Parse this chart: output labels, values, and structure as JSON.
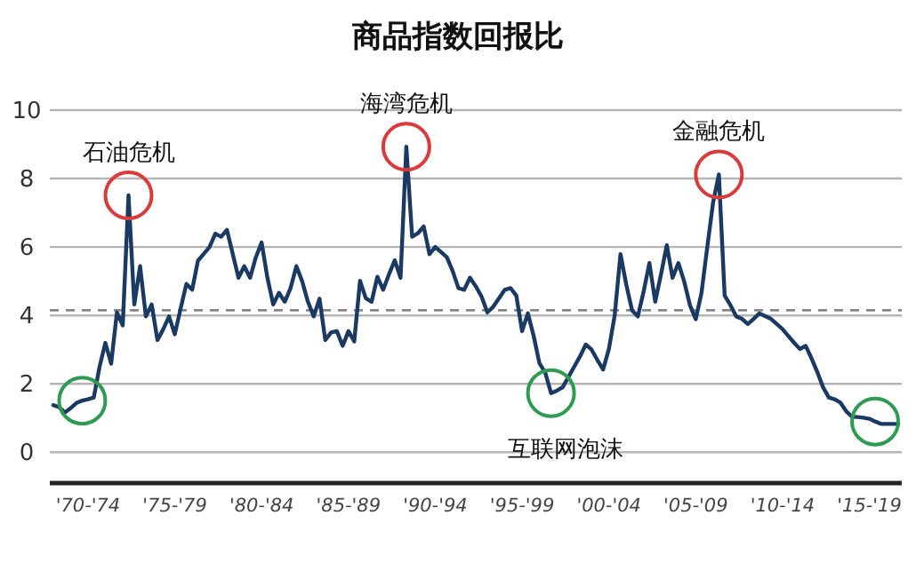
{
  "chart_data": {
    "type": "line",
    "title": "商品指数回报比",
    "categories": [
      null,
      null,
      null,
      null,
      null,
      null,
      "'70-'74",
      null,
      null,
      null,
      null,
      null,
      null,
      null,
      null,
      null,
      null,
      null,
      null,
      null,
      null,
      "'75-'79",
      null,
      null,
      null,
      null,
      null,
      null,
      null,
      null,
      null,
      null,
      null,
      null,
      null,
      null,
      "'80-'84",
      null,
      null,
      null,
      null,
      null,
      null,
      null,
      null,
      null,
      null,
      null,
      null,
      null,
      null,
      "'85-'89",
      null,
      null,
      null,
      null,
      null,
      null,
      null,
      null,
      null,
      null,
      null,
      null,
      null,
      null,
      "'90-'94",
      null,
      null,
      null,
      null,
      null,
      null,
      null,
      null,
      null,
      null,
      null,
      null,
      null,
      null,
      "'95-'99",
      null,
      null,
      null,
      null,
      null,
      null,
      null,
      null,
      null,
      null,
      null,
      null,
      null,
      null,
      "'00-'04",
      null,
      null,
      null,
      null,
      null,
      null,
      null,
      null,
      null,
      null,
      null,
      null,
      null,
      null,
      "'05-'09",
      null,
      null,
      null,
      null,
      null,
      null,
      null,
      null,
      null,
      null,
      null,
      null,
      null,
      null,
      "'10-'14",
      null,
      null,
      null,
      null,
      null,
      null,
      null,
      null,
      null,
      null,
      null,
      null,
      null,
      null,
      "'15-'19",
      null,
      null,
      null,
      null,
      null
    ],
    "series": [
      {
        "color": "#1b3a63",
        "values": [
          1.38,
          1.32,
          1.16,
          1.29,
          1.44,
          1.51,
          1.55,
          1.6,
          2.5,
          3.2,
          2.59,
          4.09,
          3.71,
          7.51,
          4.32,
          5.44,
          3.97,
          4.32,
          3.28,
          3.6,
          3.97,
          3.45,
          4.2,
          4.92,
          4.75,
          5.6,
          5.8,
          6.0,
          6.39,
          6.3,
          6.5,
          5.8,
          5.1,
          5.44,
          5.1,
          5.7,
          6.13,
          5.1,
          4.32,
          4.66,
          4.4,
          4.8,
          5.44,
          5.0,
          4.4,
          3.97,
          4.49,
          3.28,
          3.5,
          3.54,
          3.11,
          3.54,
          3.24,
          5.01,
          4.5,
          4.4,
          5.13,
          4.75,
          5.2,
          5.61,
          5.1,
          8.93,
          6.3,
          6.4,
          6.6,
          5.79,
          6.0,
          5.85,
          5.7,
          5.3,
          4.8,
          4.75,
          5.1,
          4.85,
          4.55,
          4.09,
          4.25,
          4.5,
          4.75,
          4.8,
          4.58,
          3.54,
          4.06,
          3.4,
          2.6,
          2.33,
          1.73,
          1.8,
          1.9,
          2.2,
          2.5,
          2.8,
          3.15,
          3.0,
          2.7,
          2.42,
          3.02,
          4.0,
          5.79,
          4.9,
          4.15,
          3.97,
          4.7,
          5.53,
          4.4,
          5.2,
          6.05,
          5.1,
          5.53,
          5.0,
          4.3,
          3.89,
          4.66,
          6.0,
          7.3,
          8.12,
          4.58,
          4.3,
          3.97,
          3.9,
          3.75,
          3.9,
          4.06,
          3.98,
          3.9,
          3.75,
          3.6,
          3.4,
          3.2,
          3.02,
          3.11,
          2.75,
          2.35,
          1.9,
          1.6,
          1.55,
          1.45,
          1.2,
          1.04,
          1.03,
          1.01,
          0.98,
          0.9,
          0.83,
          0.83,
          0.83,
          0.83
        ]
      }
    ],
    "ylim": [
      -0.9,
      10
    ],
    "yticks": [
      0,
      2,
      4,
      6,
      8,
      10
    ],
    "grid": "y",
    "ref_lines": [
      {
        "axis": "y",
        "value": 4.15,
        "color": "#888888",
        "line_style": "dashed"
      }
    ],
    "annotations": [
      {
        "text": "石油危机",
        "y": 7.51
      },
      {
        "text": "海湾危机",
        "y": 8.93
      },
      {
        "text": "互联网泡沫",
        "y": 1.73
      },
      {
        "text": "金融危机",
        "y": 8.12
      }
    ]
  }
}
